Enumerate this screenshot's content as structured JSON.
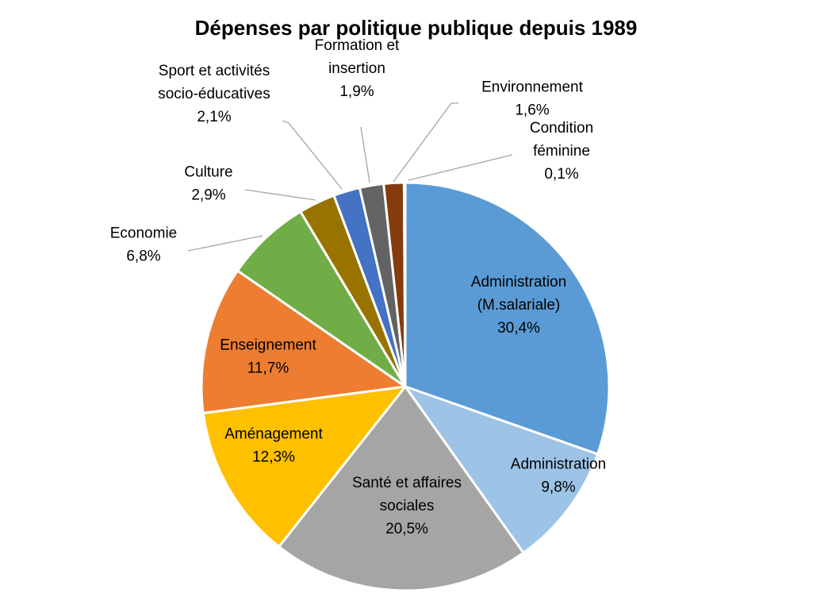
{
  "chart_data": {
    "type": "pie",
    "title": "Dépenses par politique publique depuis 1989",
    "slices": [
      {
        "label_lines": [
          "Administration",
          "(M.salariale)"
        ],
        "value": 30.4,
        "value_label": "30,4%",
        "color": "#5B9BD5"
      },
      {
        "label_lines": [
          "Administration"
        ],
        "value": 9.8,
        "value_label": "9,8%",
        "color": "#9DC3E6"
      },
      {
        "label_lines": [
          "Santé et affaires",
          "sociales"
        ],
        "value": 20.5,
        "value_label": "20,5%",
        "color": "#A5A5A5"
      },
      {
        "label_lines": [
          "Aménagement"
        ],
        "value": 12.3,
        "value_label": "12,3%",
        "color": "#FFC000"
      },
      {
        "label_lines": [
          "Enseignement"
        ],
        "value": 11.7,
        "value_label": "11,7%",
        "color": "#ED7D31"
      },
      {
        "label_lines": [
          "Economie"
        ],
        "value": 6.8,
        "value_label": "6,8%",
        "color": "#70AD47"
      },
      {
        "label_lines": [
          "Culture"
        ],
        "value": 2.9,
        "value_label": "2,9%",
        "color": "#997300"
      },
      {
        "label_lines": [
          "Sport et activités",
          "socio-éducatives"
        ],
        "value": 2.1,
        "value_label": "2,1%",
        "color": "#4472C4"
      },
      {
        "label_lines": [
          "Formation et",
          "insertion"
        ],
        "value": 1.9,
        "value_label": "1,9%",
        "color": "#636363"
      },
      {
        "label_lines": [
          "Environnement"
        ],
        "value": 1.6,
        "value_label": "1,6%",
        "color": "#843C0C"
      },
      {
        "label_lines": [
          "Condition",
          "féminine"
        ],
        "value": 0.1,
        "value_label": "0,1%",
        "color": "#264478"
      }
    ]
  }
}
